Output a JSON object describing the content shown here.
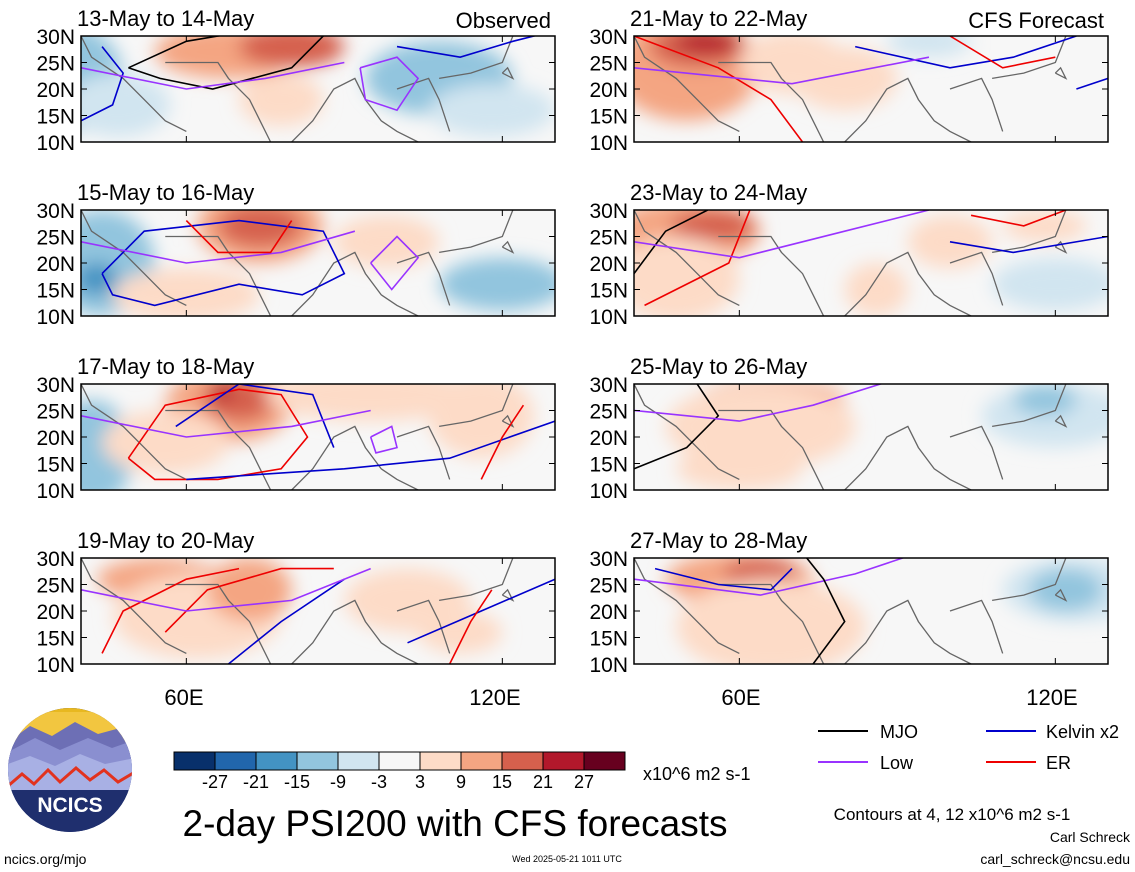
{
  "chart_data": {
    "type": "heatmap",
    "variable": "2-day PSI200 with CFS forecasts",
    "units": "x10^6 m2 s-1",
    "x_ticks": [
      "60E",
      "120E"
    ],
    "y_ticks": [
      "30N",
      "25N",
      "20N",
      "15N",
      "10N"
    ],
    "lon_range": [
      40,
      130
    ],
    "lat_range": [
      10,
      30
    ],
    "colorbar": {
      "levels": [
        -27,
        -21,
        -15,
        -9,
        -3,
        3,
        9,
        15,
        21,
        27
      ],
      "colors": [
        "#08306b",
        "#2166ac",
        "#4393c3",
        "#92c5de",
        "#d1e5f0",
        "#f7f7f7",
        "#fddbc7",
        "#f4a582",
        "#d6604d",
        "#b2182b",
        "#67001f"
      ]
    },
    "contours_note": "Contours at 4, 12 x10^6 m2 s-1",
    "legend": [
      {
        "label": "MJO",
        "color": "#000000"
      },
      {
        "label": "Kelvin x2",
        "color": "#0000cc"
      },
      {
        "label": "Low",
        "color": "#9933ff"
      },
      {
        "label": "ER",
        "color": "#ee0000"
      }
    ],
    "column_labels": [
      "Observed",
      "CFS Forecast"
    ],
    "panels": [
      {
        "period": "13-May to 14-May",
        "column": 0,
        "row": 0
      },
      {
        "period": "15-May to 16-May",
        "column": 0,
        "row": 1
      },
      {
        "period": "17-May to 18-May",
        "column": 0,
        "row": 2
      },
      {
        "period": "19-May to 20-May",
        "column": 0,
        "row": 3
      },
      {
        "period": "21-May to 22-May",
        "column": 1,
        "row": 0
      },
      {
        "period": "23-May to 24-May",
        "column": 1,
        "row": 1
      },
      {
        "period": "25-May to 26-May",
        "column": 1,
        "row": 2
      },
      {
        "period": "27-May to 28-May",
        "column": 1,
        "row": 3
      }
    ]
  },
  "footer": {
    "title": "2-day PSI200 with CFS forecasts",
    "logo_text": "NCICS",
    "site": "ncics.org/mjo",
    "timestamp": "Wed 2025-05-21 1011 UTC",
    "author": "Carl Schreck",
    "email": "carl_schreck@ncsu.edu"
  }
}
